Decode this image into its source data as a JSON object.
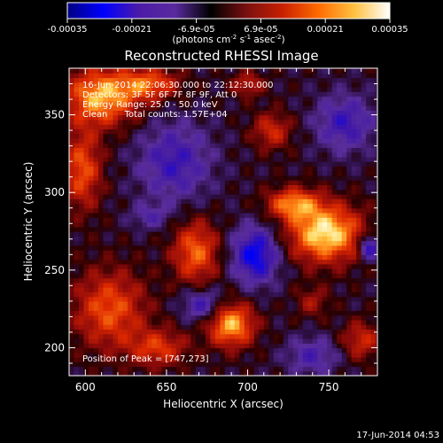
{
  "chart_data": {
    "type": "heatmap",
    "title": "Reconstructed RHESSI Image",
    "xlabel": "Heliocentric X (arcsec)",
    "ylabel": "Heliocentric Y (arcsec)",
    "xlim": [
      590,
      780
    ],
    "ylim": [
      182,
      380
    ],
    "x_ticks": [
      600,
      650,
      700,
      750
    ],
    "y_ticks": [
      200,
      250,
      300,
      350
    ],
    "colorbar": {
      "range": [
        -0.00035,
        0.00035
      ],
      "tick_labels": [
        "-0.00035",
        "-0.00021",
        "-6.9e-05",
        "6.9e-05",
        "0.00021",
        "0.00035"
      ],
      "units_label": "(photons cm",
      "units_exp1": "-2",
      "units_mid": " s",
      "units_exp2": "-1",
      "units_mid2": " asec",
      "units_exp3": "-2",
      "units_end": ")",
      "colors": [
        "#000080",
        "#0000ff",
        "#4b1ba8",
        "#5a2a9e",
        "#000000",
        "#7a1010",
        "#c82000",
        "#ff6a00",
        "#ffc040",
        "#ffffff"
      ]
    },
    "annotations": {
      "time_range": "16-Jun-2014 22:06:30.000 to 22:12:30.000",
      "detectors": "Detectors: 3F 5F 6F 7F 8F 9F, Att 0",
      "energy": "Energy Range: 25.0 - 50.0 keV",
      "clean": "Clean      Total counts: 1.57E+04",
      "peak": "Position of Peak = [747,273]"
    },
    "peak": [
      747,
      273
    ],
    "blobs": [
      {
        "x": 748,
        "y": 274,
        "sx": 22,
        "sy": 18,
        "a": 1.0
      },
      {
        "x": 728,
        "y": 293,
        "sx": 16,
        "sy": 10,
        "a": 0.7
      },
      {
        "x": 610,
        "y": 362,
        "sx": 22,
        "sy": 18,
        "a": 0.85
      },
      {
        "x": 640,
        "y": 370,
        "sx": 18,
        "sy": 10,
        "a": 0.6
      },
      {
        "x": 598,
        "y": 315,
        "sx": 12,
        "sy": 25,
        "a": 0.6
      },
      {
        "x": 668,
        "y": 262,
        "sx": 14,
        "sy": 20,
        "a": 0.65
      },
      {
        "x": 690,
        "y": 215,
        "sx": 14,
        "sy": 14,
        "a": 0.85
      },
      {
        "x": 615,
        "y": 225,
        "sx": 22,
        "sy": 25,
        "a": 0.6
      },
      {
        "x": 645,
        "y": 200,
        "sx": 18,
        "sy": 12,
        "a": 0.5
      },
      {
        "x": 715,
        "y": 340,
        "sx": 12,
        "sy": 12,
        "a": 0.45
      },
      {
        "x": 770,
        "y": 205,
        "sx": 12,
        "sy": 12,
        "a": 0.45
      },
      {
        "x": 700,
        "y": 370,
        "sx": 10,
        "sy": 8,
        "a": 0.4
      },
      {
        "x": 740,
        "y": 230,
        "sx": 10,
        "sy": 10,
        "a": 0.3
      },
      {
        "x": 655,
        "y": 320,
        "sx": 22,
        "sy": 25,
        "a": -0.5
      },
      {
        "x": 705,
        "y": 260,
        "sx": 14,
        "sy": 18,
        "a": -0.75
      },
      {
        "x": 760,
        "y": 345,
        "sx": 18,
        "sy": 18,
        "a": -0.5
      },
      {
        "x": 672,
        "y": 228,
        "sx": 12,
        "sy": 10,
        "a": -0.5
      },
      {
        "x": 740,
        "y": 195,
        "sx": 16,
        "sy": 12,
        "a": -0.4
      },
      {
        "x": 775,
        "y": 265,
        "sx": 6,
        "sy": 8,
        "a": -0.7
      },
      {
        "x": 640,
        "y": 285,
        "sx": 12,
        "sy": 8,
        "a": -0.3
      }
    ]
  },
  "footer": {
    "timestamp": "17-Jun-2014 04:53"
  }
}
